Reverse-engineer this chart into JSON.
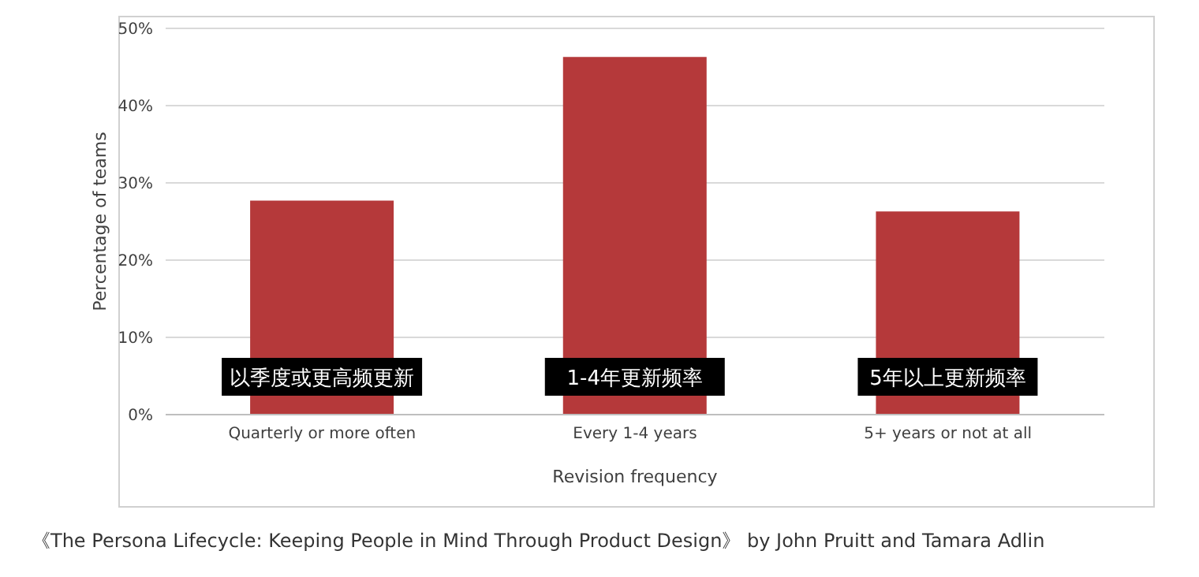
{
  "chart_data": {
    "type": "bar",
    "xlabel": "Revision frequency",
    "ylabel": "Percentage of teams",
    "categories": [
      "Quarterly or more often",
      "Every 1-4 years",
      "5+ years or not at all"
    ],
    "values": [
      27.7,
      46.3,
      26.3
    ],
    "color": "#b5393a",
    "ylim": [
      0,
      50
    ],
    "yticks": [
      {
        "value": 0,
        "label": "0%"
      },
      {
        "value": 10,
        "label": "10%"
      },
      {
        "value": 20,
        "label": "20%"
      },
      {
        "value": 30,
        "label": "30%"
      },
      {
        "value": 40,
        "label": "40%"
      },
      {
        "value": 50,
        "label": "50%"
      }
    ],
    "grid": "y",
    "annotations": [
      "以季度或更高频更新",
      "1-4年更新频率",
      "5年以上更新频率",
      "《The Persona Lifecycle: Keeping People in Mind Through Product Design》 by John Pruitt and Tamara Adlin"
    ]
  }
}
